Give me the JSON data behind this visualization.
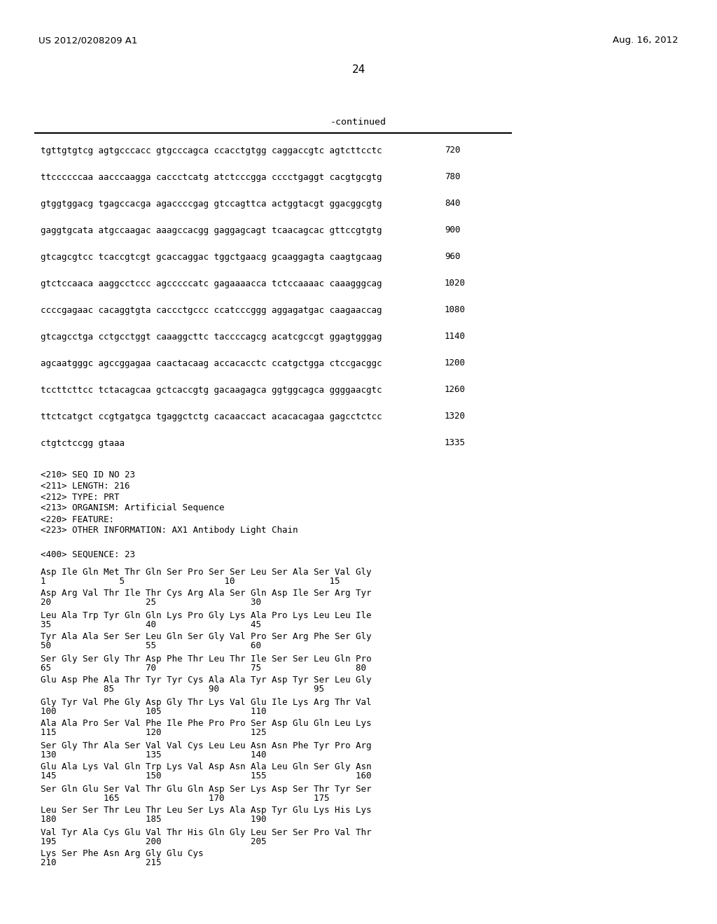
{
  "header_left": "US 2012/0208209 A1",
  "header_right": "Aug. 16, 2012",
  "page_number": "24",
  "continued_label": "-continued",
  "background_color": "#ffffff",
  "text_color": "#000000",
  "sequence_lines": [
    {
      "seq": "tgttgtgtcg agtgcccacc gtgcccagca ccacctgtgg caggaccgtc agtcttcctc",
      "num": "720"
    },
    {
      "seq": "ttccccccaa aacccaagga caccctcatg atctcccgga cccctgaggt cacgtgcgtg",
      "num": "780"
    },
    {
      "seq": "gtggtggacg tgagccacga agaccccgag gtccagttca actggtacgt ggacggcgtg",
      "num": "840"
    },
    {
      "seq": "gaggtgcata atgccaagac aaagccacgg gaggagcagt tcaacagcac gttccgtgtg",
      "num": "900"
    },
    {
      "seq": "gtcagcgtcc tcaccgtcgt gcaccaggac tggctgaacg gcaaggagta caagtgcaag",
      "num": "960"
    },
    {
      "seq": "gtctccaaca aaggcctccc agcccccatc gagaaaacca tctccaaaac caaagggcag",
      "num": "1020"
    },
    {
      "seq": "ccccgagaac cacaggtgta caccctgccc ccatcccggg aggagatgac caagaaccag",
      "num": "1080"
    },
    {
      "seq": "gtcagcctga cctgcctggt caaaggcttc taccccagcg acatcgccgt ggagtgggag",
      "num": "1140"
    },
    {
      "seq": "agcaatgggc agccggagaa caactacaag accacacctc ccatgctgga ctccgacggc",
      "num": "1200"
    },
    {
      "seq": "tccttcttcc tctacagcaa gctcaccgtg gacaagagca ggtggcagca ggggaacgtc",
      "num": "1260"
    },
    {
      "seq": "ttctcatgct ccgtgatgca tgaggctctg cacaaccact acacacagaa gagcctctcc",
      "num": "1320"
    },
    {
      "seq": "ctgtctccgg gtaaa",
      "num": "1335"
    }
  ],
  "metadata_lines": [
    "<210> SEQ ID NO 23",
    "<211> LENGTH: 216",
    "<212> TYPE: PRT",
    "<213> ORGANISM: Artificial Sequence",
    "<220> FEATURE:",
    "<223> OTHER INFORMATION: AX1 Antibody Light Chain"
  ],
  "seq400_label": "<400> SEQUENCE: 23",
  "protein_rows": [
    {
      "residues": "Asp Ile Gln Met Thr Gln Ser Pro Ser Ser Leu Ser Ala Ser Val Gly",
      "numbers": "1              5                   10                  15"
    },
    {
      "residues": "Asp Arg Val Thr Ile Thr Cys Arg Ala Ser Gln Asp Ile Ser Arg Tyr",
      "numbers": "20                  25                  30"
    },
    {
      "residues": "Leu Ala Trp Tyr Gln Gln Lys Pro Gly Lys Ala Pro Lys Leu Leu Ile",
      "numbers": "35                  40                  45"
    },
    {
      "residues": "Tyr Ala Ala Ser Ser Leu Gln Ser Gly Val Pro Ser Arg Phe Ser Gly",
      "numbers": "50                  55                  60"
    },
    {
      "residues": "Ser Gly Ser Gly Thr Asp Phe Thr Leu Thr Ile Ser Ser Leu Gln Pro",
      "numbers": "65                  70                  75                  80"
    },
    {
      "residues": "Glu Asp Phe Ala Thr Tyr Tyr Cys Ala Ala Tyr Asp Tyr Ser Leu Gly",
      "numbers": "            85                  90                  95"
    },
    {
      "residues": "Gly Tyr Val Phe Gly Asp Gly Thr Lys Val Glu Ile Lys Arg Thr Val",
      "numbers": "100                 105                 110"
    },
    {
      "residues": "Ala Ala Pro Ser Val Phe Ile Phe Pro Pro Ser Asp Glu Gln Leu Lys",
      "numbers": "115                 120                 125"
    },
    {
      "residues": "Ser Gly Thr Ala Ser Val Val Cys Leu Leu Asn Asn Phe Tyr Pro Arg",
      "numbers": "130                 135                 140"
    },
    {
      "residues": "Glu Ala Lys Val Gln Trp Lys Val Asp Asn Ala Leu Gln Ser Gly Asn",
      "numbers": "145                 150                 155                 160"
    },
    {
      "residues": "Ser Gln Glu Ser Val Thr Glu Gln Asp Ser Lys Asp Ser Thr Tyr Ser",
      "numbers": "            165                 170                 175"
    },
    {
      "residues": "Leu Ser Ser Thr Leu Thr Leu Ser Lys Ala Asp Tyr Glu Lys His Lys",
      "numbers": "180                 185                 190"
    },
    {
      "residues": "Val Tyr Ala Cys Glu Val Thr His Gln Gly Leu Ser Ser Pro Val Thr",
      "numbers": "195                 200                 205"
    },
    {
      "residues": "Lys Ser Phe Asn Arg Gly Glu Cys",
      "numbers": "210                 215"
    }
  ]
}
